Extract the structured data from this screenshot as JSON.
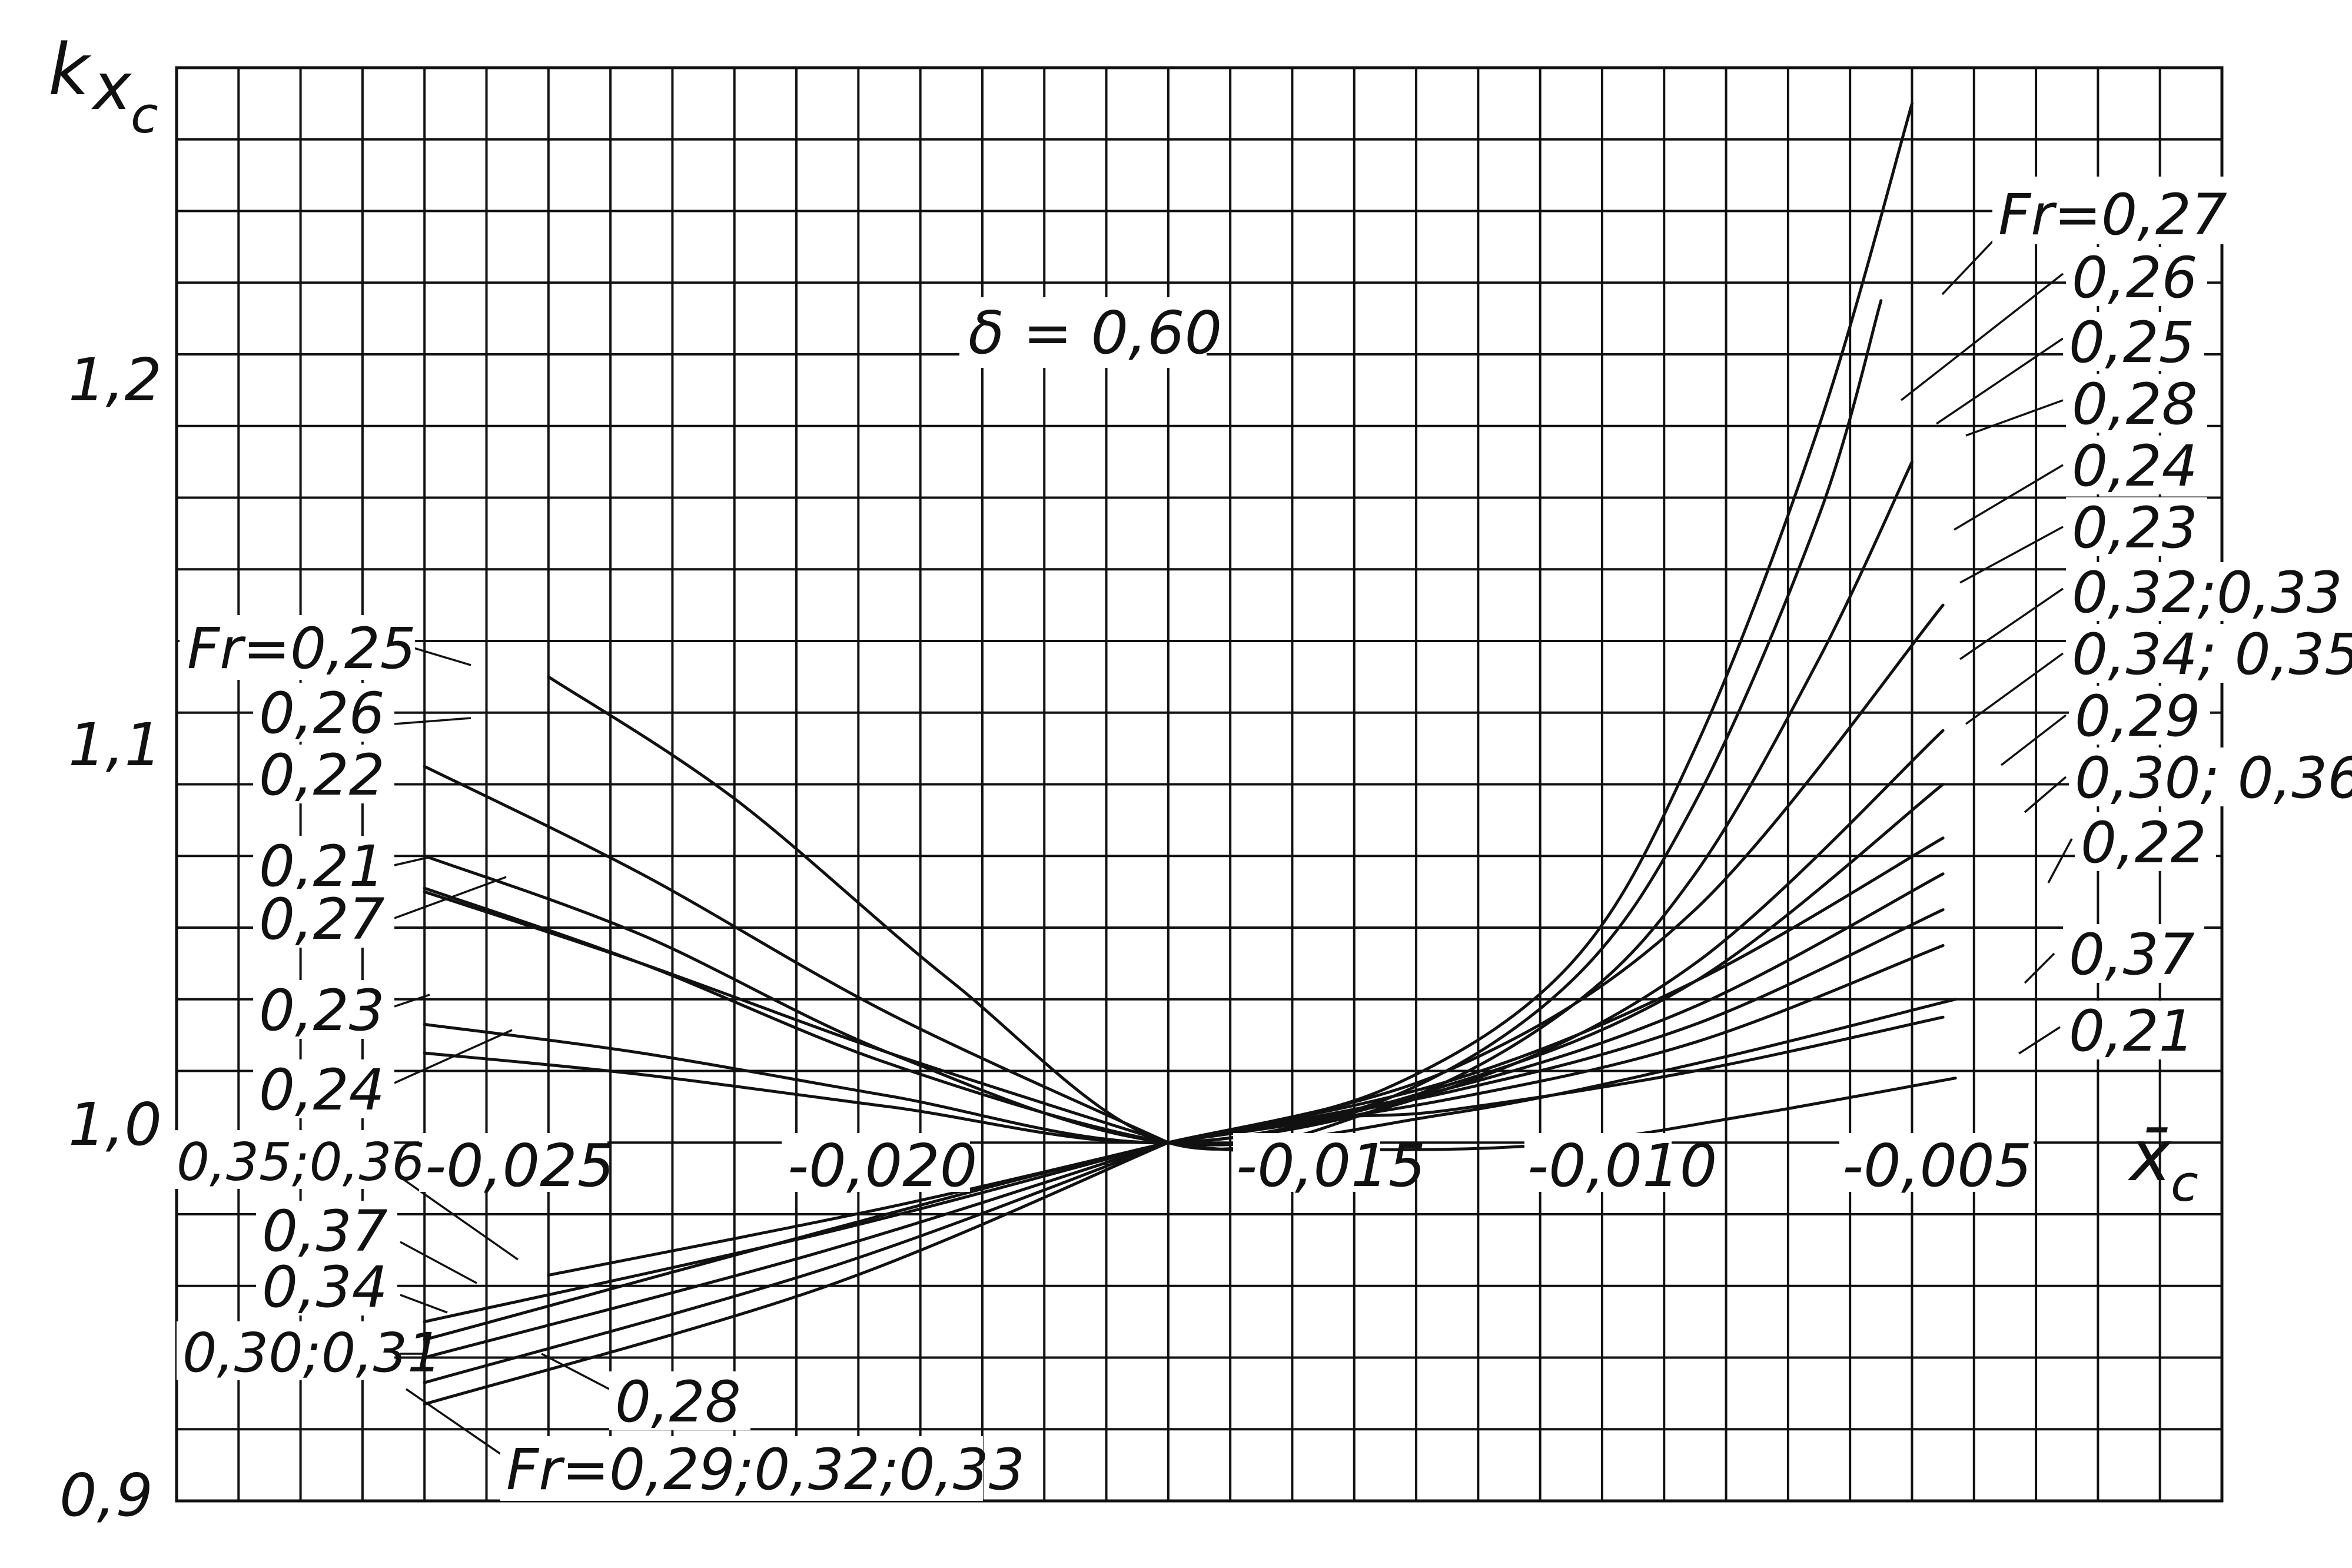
{
  "chart_data": {
    "type": "line",
    "title": "",
    "xlabel": "x̄c",
    "ylabel": "kxc",
    "xlim": [
      -0.0325,
      0.0005
    ],
    "ylim": [
      0.9,
      1.3
    ],
    "grid": true,
    "annotation": "δ = 0,60",
    "x_tick_labels": [
      {
        "value": -0.025,
        "label": "-0,025"
      },
      {
        "value": -0.02,
        "label": "-0,020"
      },
      {
        "value": -0.015,
        "label": "-0,015"
      },
      {
        "value": -0.01,
        "label": "-0,010"
      },
      {
        "value": -0.005,
        "label": "-0,005"
      }
    ],
    "y_tick_labels": [
      {
        "value": 0.9,
        "label": "0,9"
      },
      {
        "value": 1.0,
        "label": "1,0"
      },
      {
        "value": 1.1,
        "label": "1,1"
      },
      {
        "value": 1.2,
        "label": "1,2"
      }
    ],
    "series": [
      {
        "name": "Fr=0,27",
        "x": [
          -0.0165,
          -0.013,
          -0.01,
          -0.008,
          -0.006,
          -0.0045
        ],
        "y": [
          1.0,
          1.015,
          1.05,
          1.11,
          1.2,
          1.29
        ]
      },
      {
        "name": "0,26",
        "x": [
          -0.0165,
          -0.013,
          -0.01,
          -0.008,
          -0.006,
          -0.005
        ],
        "y": [
          1.0,
          1.012,
          1.045,
          1.095,
          1.175,
          1.235
        ]
      },
      {
        "name": "0,25",
        "x": [
          -0.0265,
          -0.0235,
          -0.02,
          -0.0165,
          -0.013,
          -0.01,
          -0.008,
          -0.006,
          -0.0045
        ],
        "y": [
          1.13,
          1.096,
          1.045,
          1.0,
          1.01,
          1.038,
          1.075,
          1.135,
          1.19
        ]
      },
      {
        "name": "0,28",
        "x": [
          -0.0165,
          -0.012,
          -0.008,
          -0.004
        ],
        "y": [
          1.0,
          1.02,
          1.065,
          1.15
        ]
      },
      {
        "name": "0,24",
        "x": [
          -0.0285,
          -0.025,
          -0.021,
          -0.0165,
          -0.012,
          -0.008,
          -0.004
        ],
        "y": [
          1.025,
          1.019,
          1.01,
          1.0,
          1.015,
          1.05,
          1.115
        ]
      },
      {
        "name": "0,23",
        "x": [
          -0.0285,
          -0.025,
          -0.021,
          -0.0165,
          -0.012,
          -0.008,
          -0.004
        ],
        "y": [
          1.033,
          1.025,
          1.013,
          1.0,
          1.016,
          1.045,
          1.1
        ]
      },
      {
        "name": "0,32;0,33",
        "x": [
          -0.0165,
          -0.012,
          -0.008,
          -0.004
        ],
        "y": [
          1.0,
          1.017,
          1.045,
          1.085
        ]
      },
      {
        "name": "0,34;0,35",
        "x": [
          -0.0165,
          -0.012,
          -0.008,
          -0.004
        ],
        "y": [
          1.0,
          1.015,
          1.038,
          1.075
        ]
      },
      {
        "name": "0,29",
        "x": [
          -0.0165,
          -0.012,
          -0.008,
          -0.004
        ],
        "y": [
          1.0,
          1.014,
          1.033,
          1.065
        ]
      },
      {
        "name": "0,30; 0,36",
        "x": [
          -0.0165,
          -0.012,
          -0.008,
          -0.004
        ],
        "y": [
          1.0,
          1.012,
          1.028,
          1.055
        ]
      },
      {
        "name": "0,22",
        "x": [
          -0.0285,
          -0.025,
          -0.021,
          -0.0165,
          -0.012,
          -0.008,
          -0.0038
        ],
        "y": [
          1.08,
          1.058,
          1.025,
          1.0,
          1.008,
          1.022,
          1.04
        ]
      },
      {
        "name": "0,37",
        "x": [
          -0.0285,
          -0.0165,
          -0.012,
          -0.008,
          -0.004
        ],
        "y": [
          0.945,
          1.0,
          1.009,
          1.02,
          1.035
        ]
      },
      {
        "name": "0,21",
        "x": [
          -0.0285,
          -0.025,
          -0.021,
          -0.0165,
          -0.013,
          -0.01,
          -0.007,
          -0.0038
        ],
        "y": [
          1.071,
          1.05,
          1.022,
          1.0,
          0.998,
          1.0,
          1.008,
          1.018
        ]
      },
      {
        "name": "0,26 (left)",
        "x": [
          -0.0285,
          -0.025,
          -0.021,
          -0.0165
        ],
        "y": [
          1.105,
          1.075,
          1.036,
          1.0
        ]
      },
      {
        "name": "0,27 (left)",
        "x": [
          -0.0285,
          -0.025,
          -0.021,
          -0.0165
        ],
        "y": [
          1.07,
          1.05,
          1.025,
          1.0
        ]
      },
      {
        "name": "0,35;0,36",
        "x": [
          -0.0265,
          -0.021,
          -0.0165
        ],
        "y": [
          0.963,
          0.982,
          1.0
        ]
      },
      {
        "name": "0,34",
        "x": [
          -0.0285,
          -0.022,
          -0.0165
        ],
        "y": [
          0.95,
          0.975,
          1.0
        ]
      },
      {
        "name": "0,30;0,31",
        "x": [
          -0.0285,
          -0.022,
          -0.0165
        ],
        "y": [
          0.94,
          0.97,
          1.0
        ]
      },
      {
        "name": "0,28 (left)",
        "x": [
          -0.0285,
          -0.022,
          -0.0165
        ],
        "y": [
          0.933,
          0.965,
          1.0
        ]
      },
      {
        "name": "Fr=0,29;0,32;0,33",
        "x": [
          -0.0285,
          -0.022,
          -0.0165
        ],
        "y": [
          0.927,
          0.96,
          1.0
        ]
      }
    ]
  },
  "labels": {
    "axis": {
      "x_main": "x̄",
      "x_sub": "c",
      "y_k": "k",
      "y_x": "x",
      "y_c": "c"
    },
    "param": "δ = 0,60",
    "right": [
      "Fr=0,27",
      "0,26",
      "0,25",
      "0,28",
      "0,24",
      "0,23",
      "0,32;0,33",
      "0,34; 0,35",
      "0,29",
      "0,30; 0,36",
      "0,22",
      "0,37",
      "0,21"
    ],
    "left_top": [
      "Fr=0,25",
      "0,26",
      "0,22",
      "0,21",
      "0,27",
      "0,23",
      "0,24"
    ],
    "left_bottom": [
      "0,35;0,36",
      "0,37",
      "0,34",
      "0,30;0,31",
      "0,28",
      "Fr=0,29;0,32;0,33"
    ]
  }
}
